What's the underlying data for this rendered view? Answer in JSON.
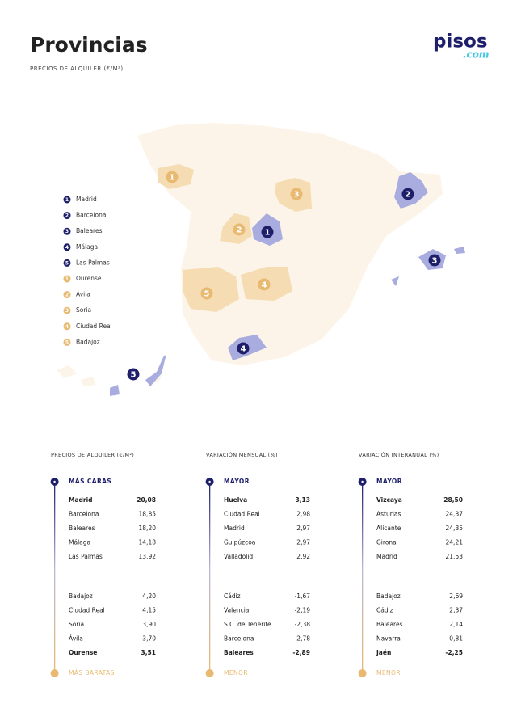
{
  "header": {
    "title": "Provincias",
    "subtitle": "PRECIOS DE ALQUILER (€/M²)"
  },
  "logo": {
    "brand": "pisos",
    "domain": ".com"
  },
  "legend": {
    "high": [
      {
        "num": 1,
        "name": "Madrid"
      },
      {
        "num": 2,
        "name": "Barcelona"
      },
      {
        "num": 3,
        "name": "Baleares"
      },
      {
        "num": 4,
        "name": "Málaga"
      },
      {
        "num": 5,
        "name": "Las Palmas"
      }
    ],
    "low": [
      {
        "num": 1,
        "name": "Ourense"
      },
      {
        "num": 2,
        "name": "Ávila"
      },
      {
        "num": 3,
        "name": "Soria"
      },
      {
        "num": 4,
        "name": "Ciudad Real"
      },
      {
        "num": 5,
        "name": "Badajoz"
      }
    ]
  },
  "tables": [
    {
      "heading": "PRECIOS DE ALQUILER (€/M²)",
      "top_label": "MÁS CARAS",
      "top": [
        [
          "Madrid",
          "20,08"
        ],
        [
          "Barcelona",
          "18,85"
        ],
        [
          "Baleares",
          "18,20"
        ],
        [
          "Málaga",
          "14,18"
        ],
        [
          "Las Palmas",
          "13,92"
        ]
      ],
      "bottom": [
        [
          "Badajoz",
          "4,20"
        ],
        [
          "Ciudad Real",
          "4,15"
        ],
        [
          "Soria",
          "3,90"
        ],
        [
          "Ávila",
          "3,70"
        ],
        [
          "Ourense",
          "3,51"
        ]
      ],
      "bottom_label": "MÁS BARATAS"
    },
    {
      "heading": "VARIACIÓN MENSUAL (%)",
      "top_label": "MAYOR",
      "top": [
        [
          "Huelva",
          "3,13"
        ],
        [
          "Ciudad Real",
          "2,98"
        ],
        [
          "Madrid",
          "2,97"
        ],
        [
          "Guipúzcoa",
          "2,97"
        ],
        [
          "Valladolid",
          "2,92"
        ]
      ],
      "bottom": [
        [
          "Cádiz",
          "-1,67"
        ],
        [
          "Valencia",
          "-2,19"
        ],
        [
          "S.C. de Tenerife",
          "-2,38"
        ],
        [
          "Barcelona",
          "-2,78"
        ],
        [
          "Baleares",
          "-2,89"
        ]
      ],
      "bottom_label": "MENOR"
    },
    {
      "heading": "VARIACIÓN INTERANUAL (%)",
      "top_label": "MAYOR",
      "top": [
        [
          "Vizcaya",
          "28,50"
        ],
        [
          "Asturias",
          "24,37"
        ],
        [
          "Alicante",
          "24,35"
        ],
        [
          "Girona",
          "24,21"
        ],
        [
          "Madrid",
          "21,53"
        ]
      ],
      "bottom": [
        [
          "Badajoz",
          "2,69"
        ],
        [
          "Cádiz",
          "2,37"
        ],
        [
          "Baleares",
          "2,14"
        ],
        [
          "Navarra",
          "-0,81"
        ],
        [
          "Jaén",
          "-2,25"
        ]
      ],
      "bottom_label": "MENOR"
    }
  ]
}
